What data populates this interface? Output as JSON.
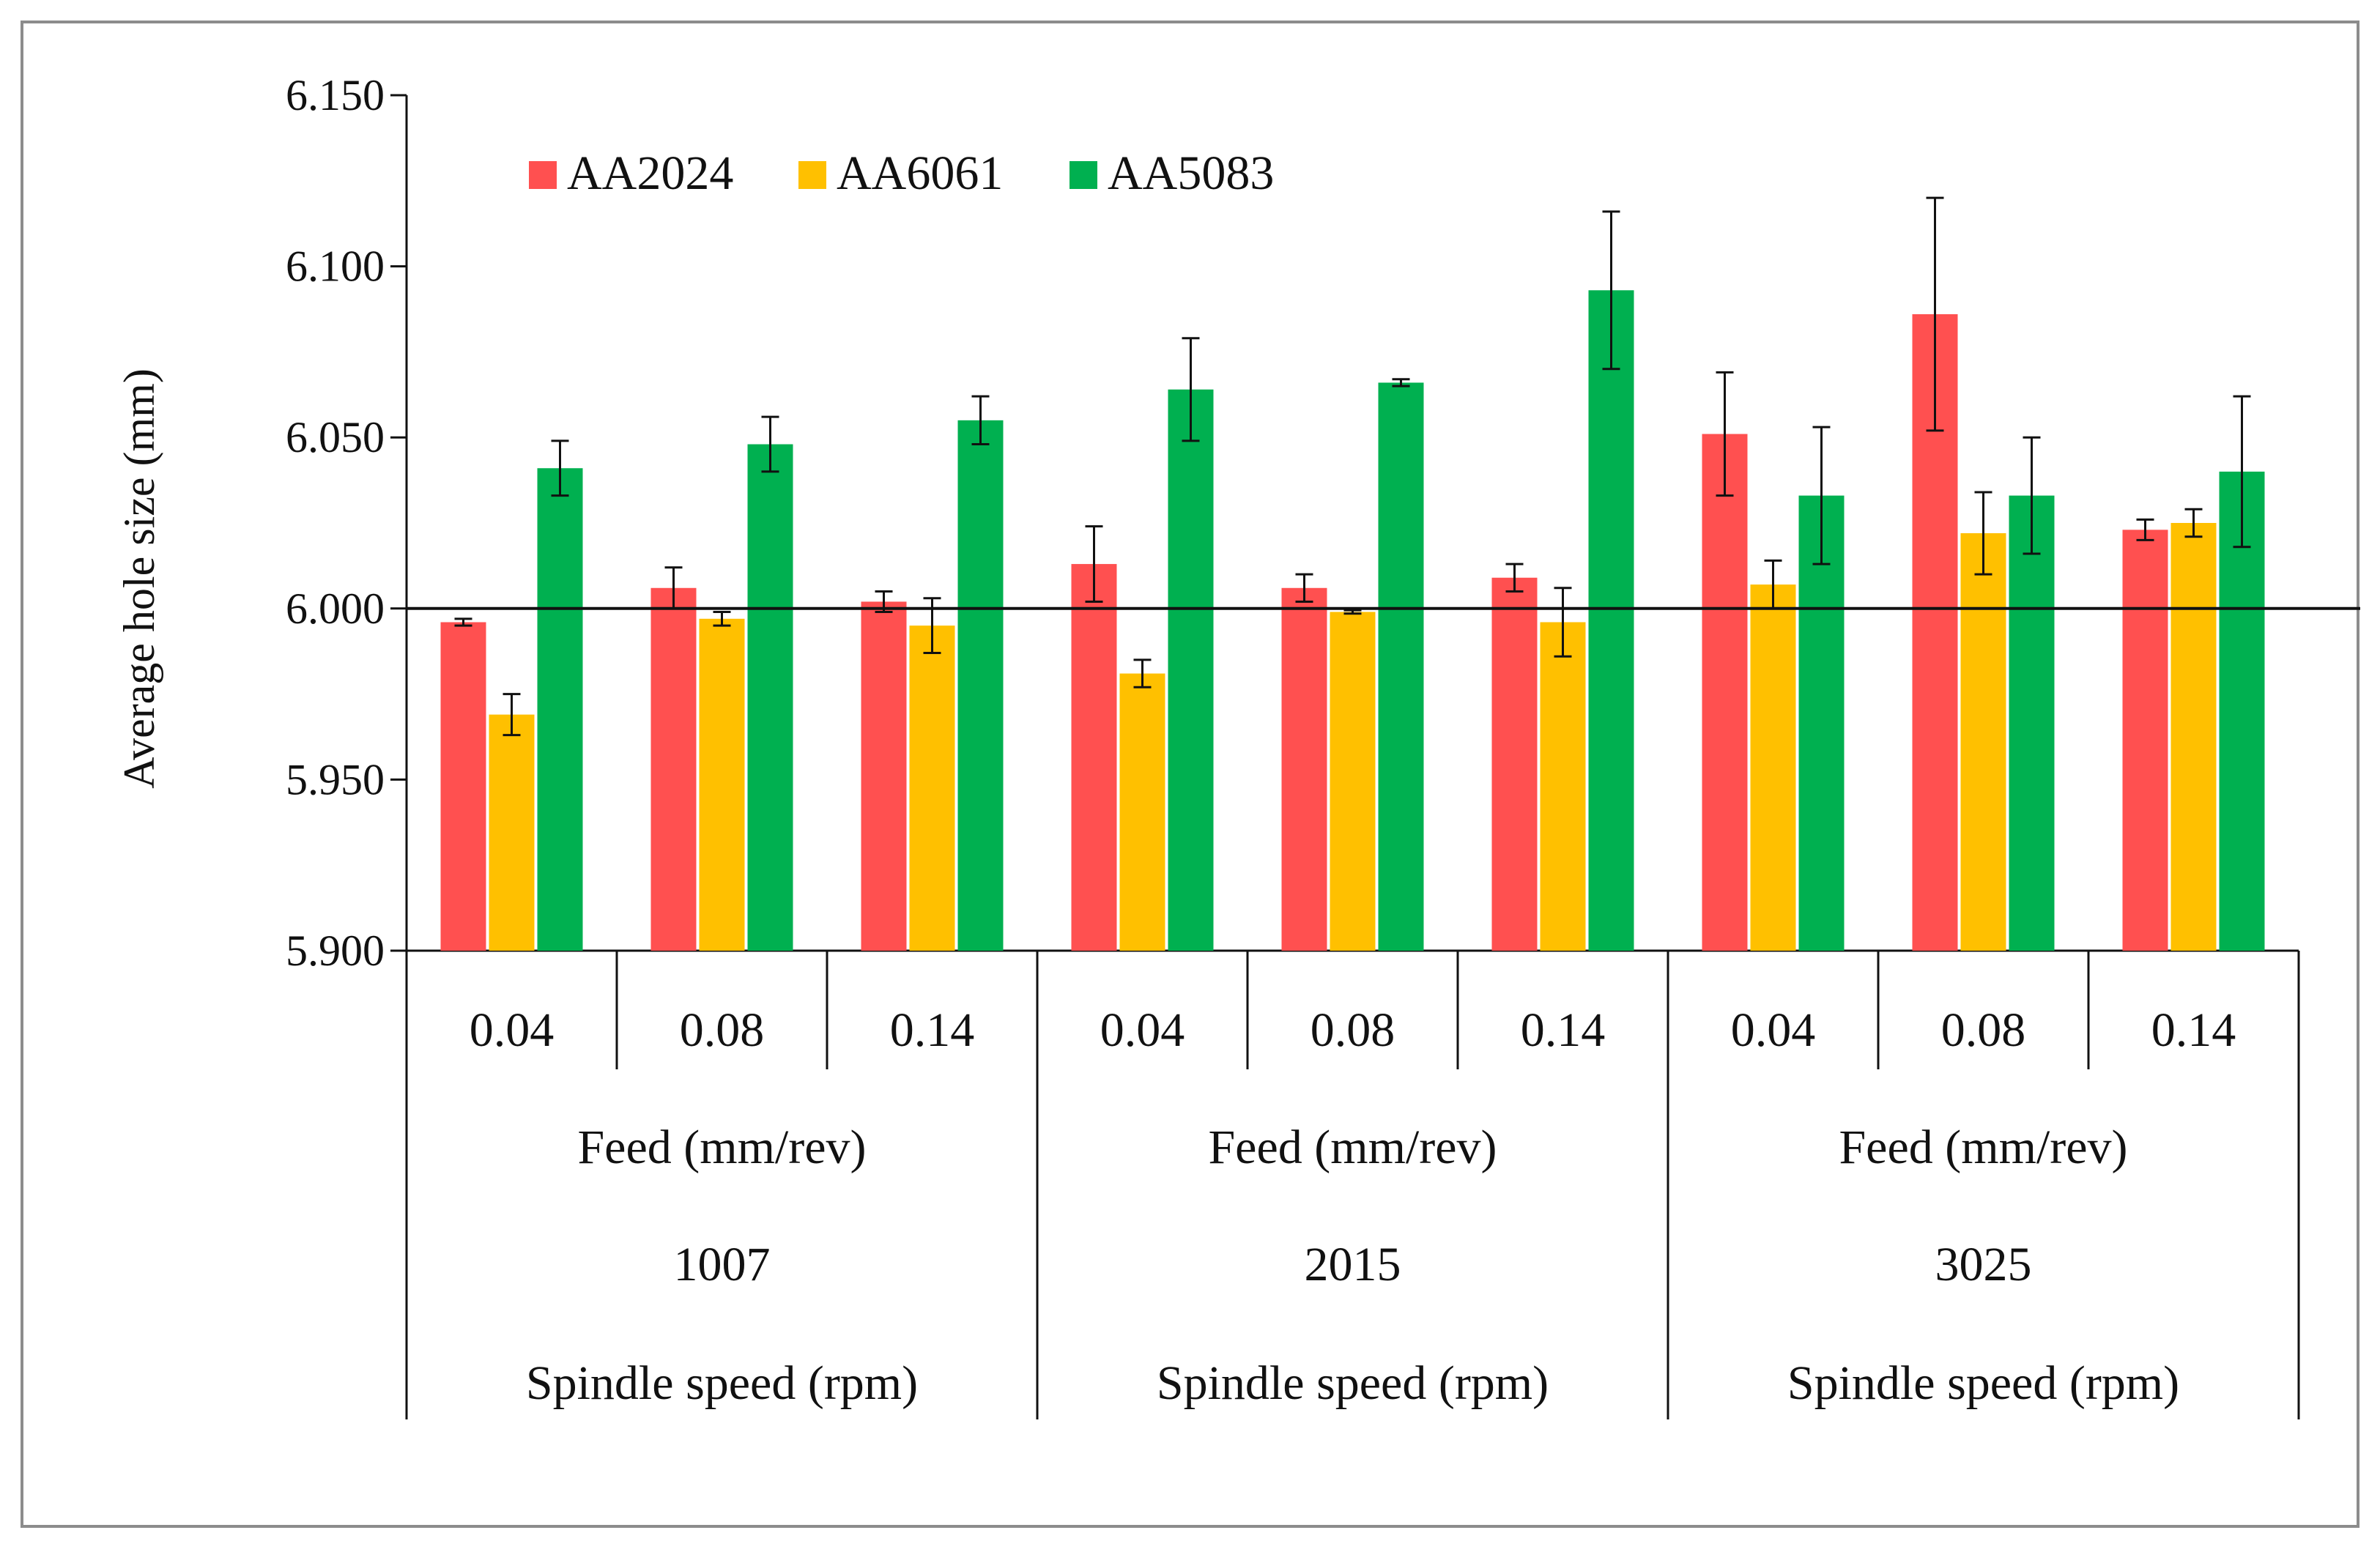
{
  "chart_data": {
    "type": "bar",
    "title": "",
    "ylabel": "Average hole size (mm)",
    "ylim": [
      5.9,
      6.15
    ],
    "yticks": [
      "5.900",
      "5.950",
      "6.000",
      "6.050",
      "6.100",
      "6.150"
    ],
    "ytick_values": [
      5.9,
      5.95,
      6.0,
      6.05,
      6.1,
      6.15
    ],
    "reference_line": 6.0,
    "legend": {
      "placement": "top-left",
      "entries": [
        "AA2024",
        "AA6061",
        "AA5083"
      ]
    },
    "feed_axis_label": "Feed (mm/rev)",
    "speed_axis_label": "Spindle speed (rpm)",
    "groups": [
      {
        "speed": "1007",
        "feeds": [
          "0.04",
          "0.08",
          "0.14"
        ]
      },
      {
        "speed": "2015",
        "feeds": [
          "0.04",
          "0.08",
          "0.14"
        ]
      },
      {
        "speed": "3025",
        "feeds": [
          "0.04",
          "0.08",
          "0.14"
        ]
      }
    ],
    "categories": [
      "0.04",
      "0.08",
      "0.14",
      "0.04",
      "0.08",
      "0.14",
      "0.04",
      "0.08",
      "0.14"
    ],
    "series": [
      {
        "name": "AA2024",
        "color": "#ff5050",
        "values": [
          5.996,
          6.006,
          6.002,
          6.013,
          6.006,
          6.009,
          6.051,
          6.086,
          6.023
        ],
        "errors": [
          0.001,
          0.006,
          0.003,
          0.011,
          0.004,
          0.004,
          0.018,
          0.034,
          0.003
        ]
      },
      {
        "name": "AA6061",
        "color": "#ffc000",
        "values": [
          5.969,
          5.997,
          5.995,
          5.981,
          5.999,
          5.996,
          6.007,
          6.022,
          6.025
        ],
        "errors": [
          0.006,
          0.002,
          0.008,
          0.004,
          0.0005,
          0.01,
          0.007,
          0.012,
          0.004
        ]
      },
      {
        "name": "AA5083",
        "color": "#00b050",
        "values": [
          6.041,
          6.048,
          6.055,
          6.064,
          6.066,
          6.093,
          6.033,
          6.033,
          6.04
        ],
        "errors": [
          0.008,
          0.008,
          0.007,
          0.015,
          0.001,
          0.023,
          0.02,
          0.017,
          0.022
        ]
      }
    ]
  }
}
